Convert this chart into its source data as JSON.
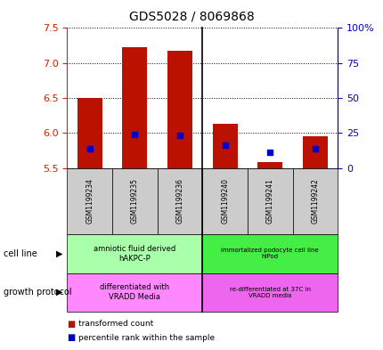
{
  "title": "GDS5028 / 8069868",
  "samples": [
    "GSM1199234",
    "GSM1199235",
    "GSM1199236",
    "GSM1199240",
    "GSM1199241",
    "GSM1199242"
  ],
  "red_values": [
    6.5,
    7.22,
    7.17,
    6.13,
    5.58,
    5.95
  ],
  "blue_values": [
    5.77,
    5.975,
    5.965,
    5.82,
    5.72,
    5.78
  ],
  "ylim": [
    5.5,
    7.5
  ],
  "yticks": [
    5.5,
    6.0,
    6.5,
    7.0,
    7.5
  ],
  "right_yticks": [
    0,
    25,
    50,
    75,
    100
  ],
  "right_ylim": [
    0,
    100
  ],
  "right_ytick_labels": [
    "0",
    "25",
    "50",
    "75",
    "100%"
  ],
  "bar_width": 0.55,
  "bar_bottom": 5.5,
  "bar_color": "#bb1100",
  "blue_color": "#0000cc",
  "cell_line_labels": [
    "amniotic fluid derived\nhAKPC-P",
    "immortalized podocyte cell line\nhIPod"
  ],
  "cell_line_colors": [
    "#aaffaa",
    "#44ee44"
  ],
  "growth_protocol_labels": [
    "differentiated with\nVRADD Media",
    "re-differentiated at 37C in\nVRADD media"
  ],
  "growth_protocol_colors": [
    "#ff88ff",
    "#ee66ee"
  ],
  "cell_line_row_label": "cell line",
  "growth_protocol_row_label": "growth protocol",
  "legend_red_label": "transformed count",
  "legend_blue_label": "percentile rank within the sample",
  "axis_color_left": "#cc2200",
  "axis_color_right": "#0000cc",
  "sample_box_color": "#cccccc",
  "grid_color": "#000000"
}
